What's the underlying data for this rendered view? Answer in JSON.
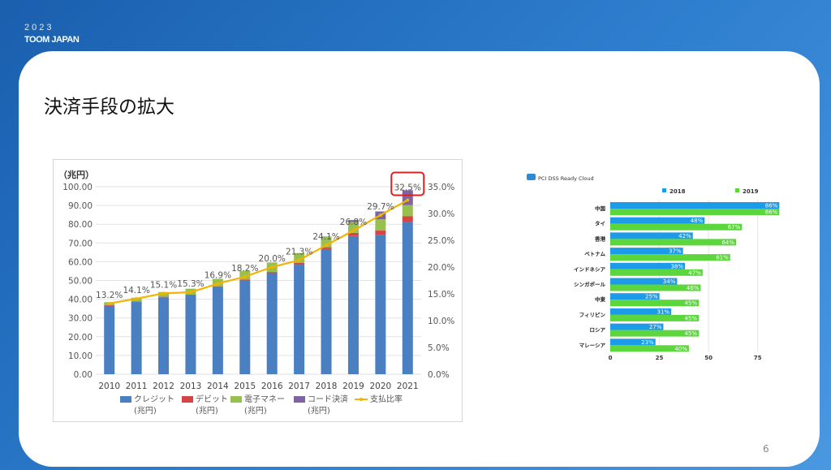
{
  "header": {
    "year": "2023",
    "brand": "TOOM JAPAN"
  },
  "slide": {
    "title": "決済手段の拡大",
    "page_number": "6"
  },
  "colors": {
    "credit": "#4a7fc1",
    "debit": "#d64545",
    "emoney": "#98c04f",
    "code": "#8064a2",
    "ratio": "#f2b400",
    "b2018": "#1c9be8",
    "b2019": "#5bd63c",
    "highlight": "#e02020"
  },
  "chart_data": [
    {
      "type": "bar",
      "stacked": true,
      "unit_label": "（兆円）",
      "categories": [
        "2010",
        "2011",
        "2012",
        "2013",
        "2014",
        "2015",
        "2016",
        "2017",
        "2018",
        "2019",
        "2020",
        "2021"
      ],
      "series": [
        {
          "name": "クレジット",
          "unit": "(兆円)",
          "values": [
            36.5,
            38.5,
            41.0,
            42.0,
            46.5,
            50.0,
            53.9,
            58.4,
            66.7,
            73.7,
            74.4,
            81.0
          ]
        },
        {
          "name": "デビット",
          "unit": "(兆円)",
          "values": [
            0.3,
            0.3,
            0.3,
            0.4,
            0.4,
            0.5,
            0.6,
            0.9,
            1.0,
            1.7,
            2.2,
            3.2
          ]
        },
        {
          "name": "電子マネー",
          "unit": "(兆円)",
          "values": [
            1.6,
            2.0,
            2.5,
            3.2,
            4.0,
            4.6,
            5.1,
            5.3,
            5.5,
            5.8,
            6.0,
            6.0
          ]
        },
        {
          "name": "コード決済",
          "unit": "(兆円)",
          "values": [
            0,
            0,
            0,
            0,
            0,
            0,
            0,
            0,
            0.2,
            1.0,
            4.2,
            7.9
          ]
        }
      ],
      "line_series": {
        "name": "支払比率",
        "values": [
          13.2,
          14.1,
          15.1,
          15.3,
          16.9,
          18.2,
          20.0,
          21.3,
          24.1,
          26.8,
          29.7,
          32.5
        ],
        "labels": [
          "13.2%",
          "14.1%",
          "15.1%",
          "15.3%",
          "16.9%",
          "18.2%",
          "20.0%",
          "21.3%",
          "24.1%",
          "26.8%",
          "29.7%",
          "32.5%"
        ]
      },
      "ylim": [
        0,
        100
      ],
      "y_ticks": [
        "0.00",
        "10.00",
        "20.00",
        "30.00",
        "40.00",
        "50.00",
        "60.00",
        "70.00",
        "80.00",
        "90.00",
        "100.00"
      ],
      "y2lim": [
        0,
        35
      ],
      "y2_ticks": [
        "0.0%",
        "5.0%",
        "10.0%",
        "15.0%",
        "20.0%",
        "25.0%",
        "30.0%",
        "35.0%"
      ],
      "highlight": "32.5%"
    },
    {
      "type": "bar",
      "orientation": "horizontal",
      "title": "PCI DSS Ready Cloud",
      "categories": [
        "中国",
        "タイ",
        "香港",
        "ベトナム",
        "インドネシア",
        "シンガポール",
        "中東",
        "フィリピン",
        "ロシア",
        "マレーシア"
      ],
      "series": [
        {
          "name": "2018",
          "values": [
            86,
            48,
            42,
            37,
            38,
            34,
            25,
            31,
            27,
            23
          ],
          "labels": [
            "86%",
            "48%",
            "42%",
            "37%",
            "38%",
            "34%",
            "25%",
            "31%",
            "27%",
            "23%"
          ]
        },
        {
          "name": "2019",
          "values": [
            86,
            67,
            64,
            61,
            47,
            46,
            45,
            45,
            45,
            40
          ],
          "labels": [
            "86%",
            "67%",
            "64%",
            "61%",
            "47%",
            "46%",
            "45%",
            "45%",
            "45%",
            "40%"
          ]
        }
      ],
      "xlim": [
        0,
        90
      ],
      "x_ticks": [
        "0",
        "25",
        "50",
        "75"
      ],
      "legend": "top"
    }
  ]
}
